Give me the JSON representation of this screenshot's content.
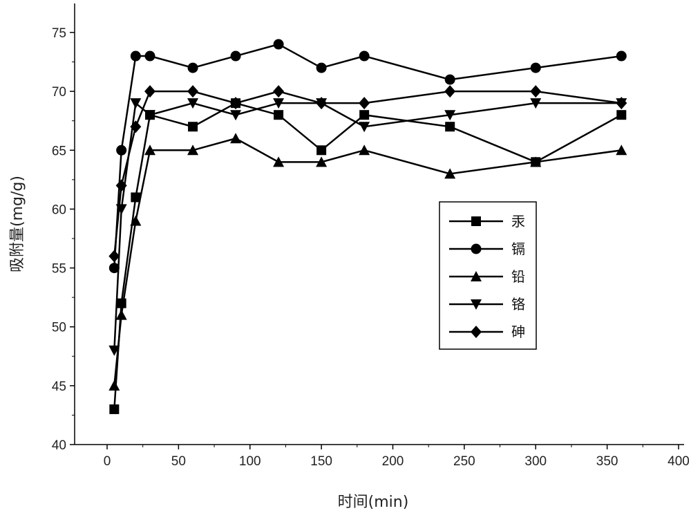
{
  "chart_data": {
    "type": "line",
    "title": "",
    "xlabel": "时间(min)",
    "ylabel": "吸附量(mg/g)",
    "xlim": [
      -25,
      400
    ],
    "ylim": [
      40,
      77.5
    ],
    "xticks": [
      0,
      50,
      100,
      150,
      200,
      250,
      300,
      350,
      400
    ],
    "yticks": [
      40,
      45,
      50,
      55,
      60,
      65,
      70,
      75
    ],
    "grid": false,
    "legend_position": "center-right",
    "x": [
      5,
      10,
      20,
      30,
      60,
      90,
      120,
      150,
      180,
      240,
      300,
      360
    ],
    "series": [
      {
        "name": "汞",
        "marker": "square",
        "values": [
          43,
          52,
          61,
          68,
          67,
          69,
          68,
          65,
          68,
          67,
          64,
          68
        ]
      },
      {
        "name": "镉",
        "marker": "circle",
        "values": [
          55,
          65,
          73,
          73,
          72,
          73,
          74,
          72,
          73,
          71,
          72,
          73
        ]
      },
      {
        "name": "铅",
        "marker": "triangle-up",
        "values": [
          45,
          51,
          59,
          65,
          65,
          66,
          64,
          64,
          65,
          63,
          64,
          65
        ]
      },
      {
        "name": "铬",
        "marker": "triangle-down",
        "values": [
          48,
          60,
          69,
          68,
          69,
          68,
          69,
          69,
          67,
          68,
          69,
          69
        ]
      },
      {
        "name": "砷",
        "marker": "diamond",
        "values": [
          56,
          62,
          67,
          70,
          70,
          69,
          70,
          69,
          69,
          70,
          70,
          69
        ]
      }
    ],
    "line_color": "#000000"
  }
}
